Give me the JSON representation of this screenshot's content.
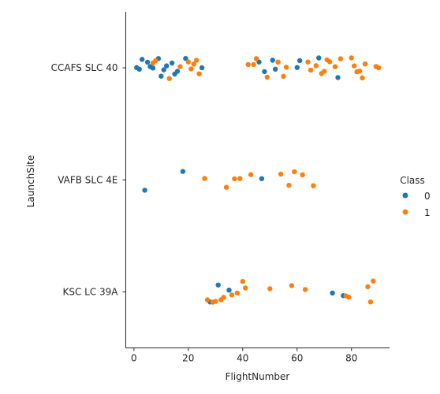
{
  "chart_data": {
    "type": "scatter",
    "title": "",
    "xlabel": "FlightNumber",
    "ylabel": "LaunchSite",
    "xlim": [
      -3,
      94
    ],
    "x_ticks": [
      0,
      20,
      40,
      60,
      80
    ],
    "categories": [
      "CCAFS SLC 40",
      "VAFB SLC 4E",
      "KSC LC 39A"
    ],
    "grid": false,
    "legend": {
      "title": "Class",
      "placement": "right",
      "entries": [
        "0",
        "1"
      ]
    },
    "series": [
      {
        "name": "0",
        "color": "#1f77b4",
        "points": [
          {
            "x": 1,
            "y": "CCAFS SLC 40"
          },
          {
            "x": 2,
            "y": "CCAFS SLC 40"
          },
          {
            "x": 3,
            "y": "CCAFS SLC 40"
          },
          {
            "x": 5,
            "y": "CCAFS SLC 40"
          },
          {
            "x": 6,
            "y": "CCAFS SLC 40"
          },
          {
            "x": 7,
            "y": "CCAFS SLC 40"
          },
          {
            "x": 9,
            "y": "CCAFS SLC 40"
          },
          {
            "x": 10,
            "y": "CCAFS SLC 40"
          },
          {
            "x": 11,
            "y": "CCAFS SLC 40"
          },
          {
            "x": 12,
            "y": "CCAFS SLC 40"
          },
          {
            "x": 14,
            "y": "CCAFS SLC 40"
          },
          {
            "x": 15,
            "y": "CCAFS SLC 40"
          },
          {
            "x": 16,
            "y": "CCAFS SLC 40"
          },
          {
            "x": 19,
            "y": "CCAFS SLC 40"
          },
          {
            "x": 25,
            "y": "CCAFS SLC 40"
          },
          {
            "x": 46,
            "y": "CCAFS SLC 40"
          },
          {
            "x": 48,
            "y": "CCAFS SLC 40"
          },
          {
            "x": 51,
            "y": "CCAFS SLC 40"
          },
          {
            "x": 52,
            "y": "CCAFS SLC 40"
          },
          {
            "x": 60,
            "y": "CCAFS SLC 40"
          },
          {
            "x": 61,
            "y": "CCAFS SLC 40"
          },
          {
            "x": 68,
            "y": "CCAFS SLC 40"
          },
          {
            "x": 75,
            "y": "CCAFS SLC 40"
          },
          {
            "x": 4,
            "y": "VAFB SLC 4E"
          },
          {
            "x": 18,
            "y": "VAFB SLC 4E"
          },
          {
            "x": 47,
            "y": "VAFB SLC 4E"
          },
          {
            "x": 28,
            "y": "KSC LC 39A"
          },
          {
            "x": 31,
            "y": "KSC LC 39A"
          },
          {
            "x": 35,
            "y": "KSC LC 39A"
          },
          {
            "x": 73,
            "y": "KSC LC 39A"
          },
          {
            "x": 77,
            "y": "KSC LC 39A"
          }
        ]
      },
      {
        "name": "1",
        "color": "#ff7f0e",
        "points": [
          {
            "x": 7,
            "y": "CCAFS SLC 40"
          },
          {
            "x": 8,
            "y": "CCAFS SLC 40"
          },
          {
            "x": 13,
            "y": "CCAFS SLC 40"
          },
          {
            "x": 17,
            "y": "CCAFS SLC 40"
          },
          {
            "x": 20,
            "y": "CCAFS SLC 40"
          },
          {
            "x": 21,
            "y": "CCAFS SLC 40"
          },
          {
            "x": 22,
            "y": "CCAFS SLC 40"
          },
          {
            "x": 23,
            "y": "CCAFS SLC 40"
          },
          {
            "x": 24,
            "y": "CCAFS SLC 40"
          },
          {
            "x": 42,
            "y": "CCAFS SLC 40"
          },
          {
            "x": 44,
            "y": "CCAFS SLC 40"
          },
          {
            "x": 45,
            "y": "CCAFS SLC 40"
          },
          {
            "x": 49,
            "y": "CCAFS SLC 40"
          },
          {
            "x": 53,
            "y": "CCAFS SLC 40"
          },
          {
            "x": 55,
            "y": "CCAFS SLC 40"
          },
          {
            "x": 56,
            "y": "CCAFS SLC 40"
          },
          {
            "x": 64,
            "y": "CCAFS SLC 40"
          },
          {
            "x": 65,
            "y": "CCAFS SLC 40"
          },
          {
            "x": 67,
            "y": "CCAFS SLC 40"
          },
          {
            "x": 69,
            "y": "CCAFS SLC 40"
          },
          {
            "x": 70,
            "y": "CCAFS SLC 40"
          },
          {
            "x": 71,
            "y": "CCAFS SLC 40"
          },
          {
            "x": 72,
            "y": "CCAFS SLC 40"
          },
          {
            "x": 74,
            "y": "CCAFS SLC 40"
          },
          {
            "x": 76,
            "y": "CCAFS SLC 40"
          },
          {
            "x": 80,
            "y": "CCAFS SLC 40"
          },
          {
            "x": 81,
            "y": "CCAFS SLC 40"
          },
          {
            "x": 82,
            "y": "CCAFS SLC 40"
          },
          {
            "x": 83,
            "y": "CCAFS SLC 40"
          },
          {
            "x": 84,
            "y": "CCAFS SLC 40"
          },
          {
            "x": 85,
            "y": "CCAFS SLC 40"
          },
          {
            "x": 89,
            "y": "CCAFS SLC 40"
          },
          {
            "x": 90,
            "y": "CCAFS SLC 40"
          },
          {
            "x": 26,
            "y": "VAFB SLC 4E"
          },
          {
            "x": 34,
            "y": "VAFB SLC 4E"
          },
          {
            "x": 37,
            "y": "VAFB SLC 4E"
          },
          {
            "x": 39,
            "y": "VAFB SLC 4E"
          },
          {
            "x": 43,
            "y": "VAFB SLC 4E"
          },
          {
            "x": 54,
            "y": "VAFB SLC 4E"
          },
          {
            "x": 57,
            "y": "VAFB SLC 4E"
          },
          {
            "x": 59,
            "y": "VAFB SLC 4E"
          },
          {
            "x": 62,
            "y": "VAFB SLC 4E"
          },
          {
            "x": 66,
            "y": "VAFB SLC 4E"
          },
          {
            "x": 27,
            "y": "KSC LC 39A"
          },
          {
            "x": 29,
            "y": "KSC LC 39A"
          },
          {
            "x": 30,
            "y": "KSC LC 39A"
          },
          {
            "x": 32,
            "y": "KSC LC 39A"
          },
          {
            "x": 33,
            "y": "KSC LC 39A"
          },
          {
            "x": 36,
            "y": "KSC LC 39A"
          },
          {
            "x": 38,
            "y": "KSC LC 39A"
          },
          {
            "x": 40,
            "y": "KSC LC 39A"
          },
          {
            "x": 41,
            "y": "KSC LC 39A"
          },
          {
            "x": 50,
            "y": "KSC LC 39A"
          },
          {
            "x": 58,
            "y": "KSC LC 39A"
          },
          {
            "x": 63,
            "y": "KSC LC 39A"
          },
          {
            "x": 78,
            "y": "KSC LC 39A"
          },
          {
            "x": 79,
            "y": "KSC LC 39A"
          },
          {
            "x": 86,
            "y": "KSC LC 39A"
          },
          {
            "x": 87,
            "y": "KSC LC 39A"
          },
          {
            "x": 88,
            "y": "KSC LC 39A"
          }
        ]
      }
    ]
  }
}
